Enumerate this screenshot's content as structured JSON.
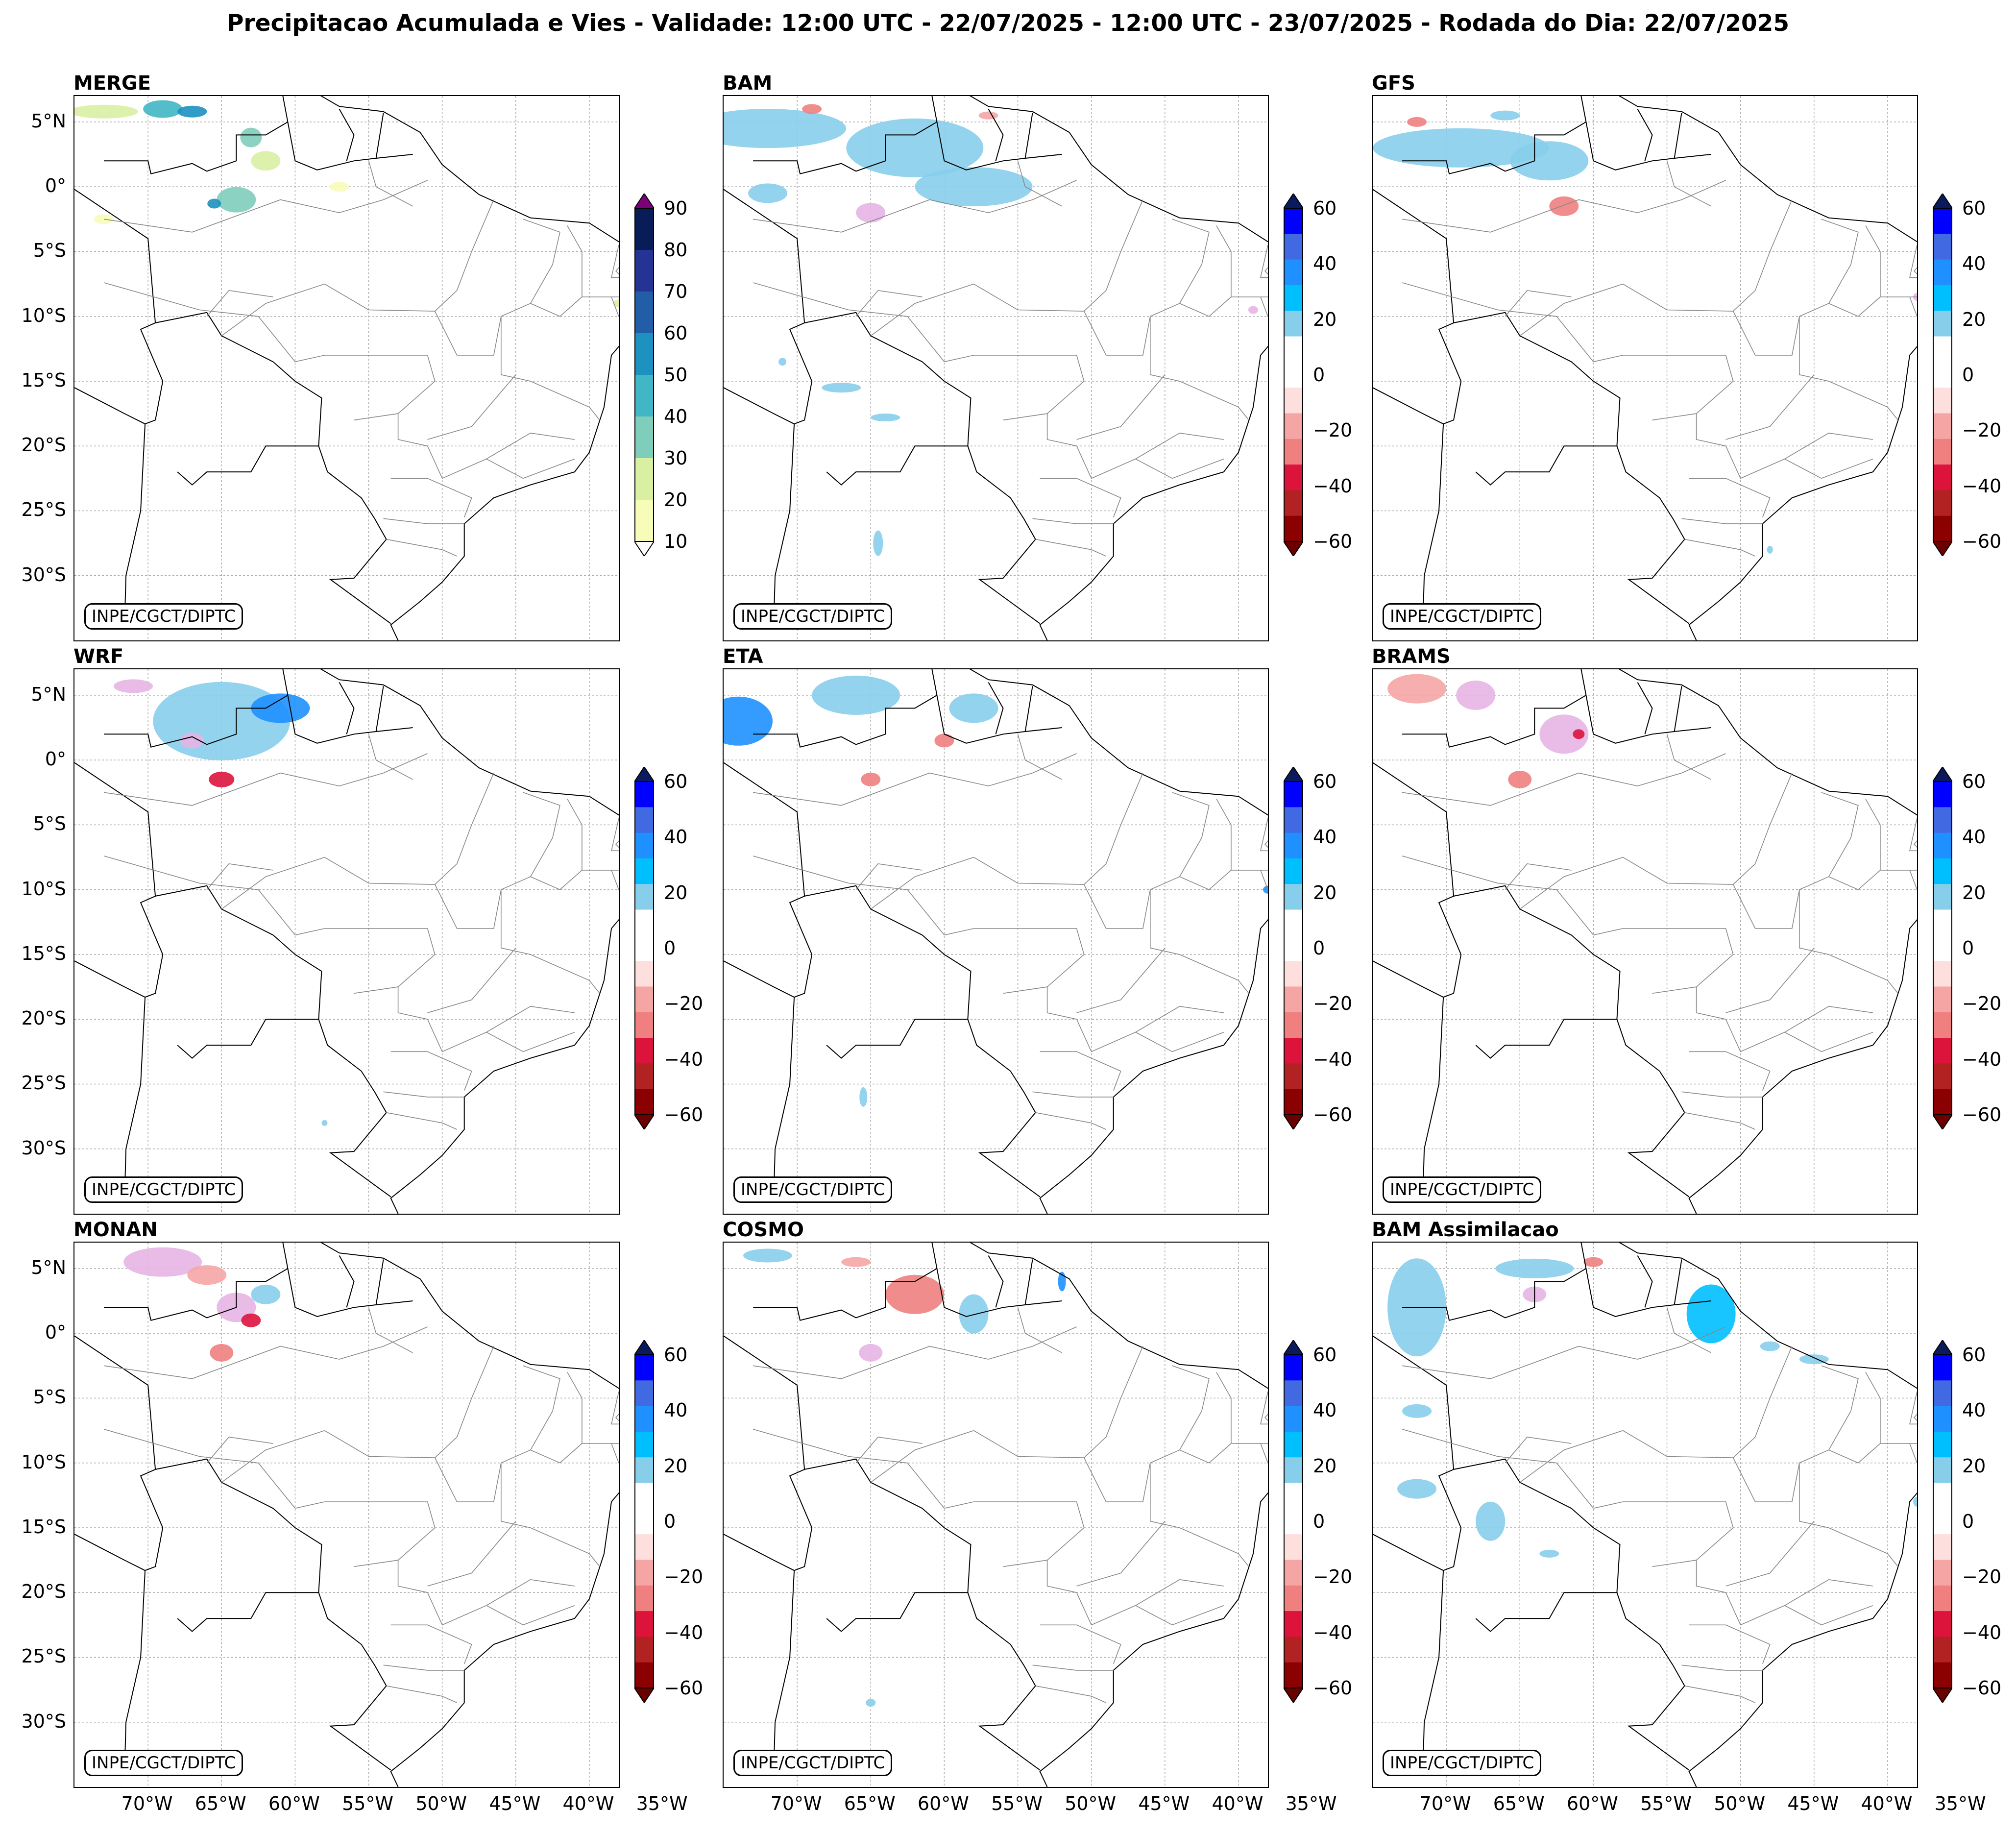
{
  "figure": {
    "title": "Precipitacao Acumulada e Vies - Validade: 12:00 UTC - 22/07/2025 - 12:00 UTC - 23/07/2025 - Rodada do Dia: 22/07/2025",
    "credit": "INPE/CGCT/DIPTC",
    "lat_labels": [
      "5°N",
      "0°",
      "5°S",
      "10°S",
      "15°S",
      "20°S",
      "25°S",
      "30°S"
    ],
    "lon_labels": [
      "70°W",
      "65°W",
      "60°W",
      "55°W",
      "50°W",
      "45°W",
      "40°W",
      "35°W"
    ]
  },
  "panels": [
    {
      "title": "MERGE",
      "type": "precip",
      "cbar_labels": [
        "90",
        "80",
        "70",
        "60",
        "50",
        "40",
        "30",
        "20",
        "10"
      ]
    },
    {
      "title": "BAM",
      "type": "bias",
      "cbar_labels": [
        "60",
        "40",
        "20",
        "0",
        "−20",
        "−40",
        "−60"
      ]
    },
    {
      "title": "GFS",
      "type": "bias",
      "cbar_labels": [
        "60",
        "40",
        "20",
        "0",
        "−20",
        "−40",
        "−60"
      ]
    },
    {
      "title": "WRF",
      "type": "bias",
      "cbar_labels": [
        "60",
        "40",
        "20",
        "0",
        "−20",
        "−40",
        "−60"
      ]
    },
    {
      "title": "ETA",
      "type": "bias",
      "cbar_labels": [
        "60",
        "40",
        "20",
        "0",
        "−20",
        "−40",
        "−60"
      ]
    },
    {
      "title": "BRAMS",
      "type": "bias",
      "cbar_labels": [
        "60",
        "40",
        "20",
        "0",
        "−20",
        "−40",
        "−60"
      ]
    },
    {
      "title": "MONAN",
      "type": "bias",
      "cbar_labels": [
        "60",
        "40",
        "20",
        "0",
        "−20",
        "−40",
        "−60"
      ]
    },
    {
      "title": "COSMO",
      "type": "bias",
      "cbar_labels": [
        "60",
        "40",
        "20",
        "0",
        "−20",
        "−40",
        "−60"
      ]
    },
    {
      "title": "BAM Assimilacao",
      "type": "bias",
      "cbar_labels": [
        "60",
        "40",
        "20",
        "0",
        "−20",
        "−40",
        "−60"
      ]
    }
  ],
  "colorscales": {
    "precip": [
      "#f7fcb9",
      "#d9f0a3",
      "#7fcdbb",
      "#41b6c4",
      "#1d91c0",
      "#225ea8",
      "#253494",
      "#081d58"
    ],
    "precip_over": "#7a0177",
    "bias_pos": [
      "#87ceeb",
      "#00bfff",
      "#1e90ff",
      "#4169e1",
      "#0000ff"
    ],
    "bias_pos_over": "#0a1a5c",
    "bias_neg": [
      "#fde0dd",
      "#f6a5a5",
      "#f08080",
      "#dc143c",
      "#b22222",
      "#8b0000"
    ],
    "bias_neg_over": "#6b0000",
    "wet": "#87ceeb",
    "dry": "#e7b4e4"
  }
}
